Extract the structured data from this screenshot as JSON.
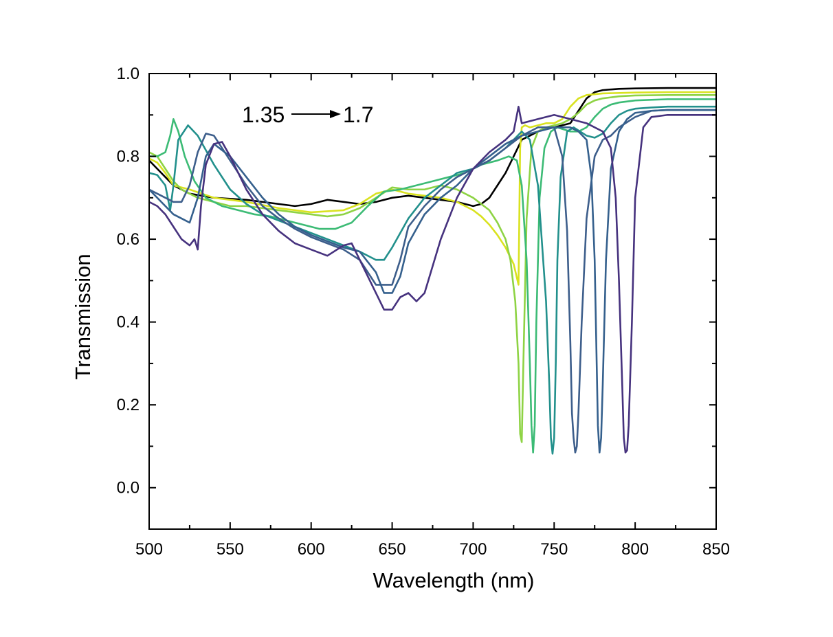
{
  "chart_data": {
    "type": "line",
    "xlabel": "Wavelength (nm)",
    "ylabel": "Transmission",
    "xlim": [
      500,
      850
    ],
    "ylim": [
      -0.1,
      1.0
    ],
    "x_ticks": [
      500,
      550,
      600,
      650,
      700,
      750,
      800,
      850
    ],
    "x_tick_labels": [
      "500",
      "550",
      "600",
      "650",
      "700",
      "750",
      "800",
      "850"
    ],
    "y_ticks": [
      0.0,
      0.2,
      0.4,
      0.6,
      0.8,
      1.0
    ],
    "y_tick_labels": [
      "0.0",
      "0.2",
      "0.4",
      "0.6",
      "0.8",
      "1.0"
    ],
    "grid": false,
    "annotation": {
      "from_label": "1.35",
      "to_label": "1.7"
    },
    "series": [
      {
        "color": "#000000",
        "x": [
          500,
          505,
          510,
          515,
          525,
          540,
          560,
          580,
          590,
          600,
          610,
          620,
          630,
          640,
          650,
          660,
          670,
          680,
          690,
          695,
          700,
          705,
          710,
          715,
          720,
          725,
          730,
          735,
          740,
          745,
          750,
          755,
          760,
          765,
          770,
          775,
          780,
          790,
          800,
          820,
          850
        ],
        "y": [
          0.79,
          0.77,
          0.75,
          0.73,
          0.71,
          0.7,
          0.695,
          0.685,
          0.68,
          0.685,
          0.695,
          0.69,
          0.685,
          0.69,
          0.7,
          0.705,
          0.7,
          0.695,
          0.69,
          0.685,
          0.68,
          0.685,
          0.7,
          0.73,
          0.76,
          0.8,
          0.84,
          0.85,
          0.86,
          0.87,
          0.87,
          0.875,
          0.88,
          0.91,
          0.94,
          0.955,
          0.96,
          0.963,
          0.964,
          0.965,
          0.965
        ]
      },
      {
        "color": "#d9e21f",
        "x": [
          500,
          505,
          510,
          515,
          525,
          540,
          560,
          580,
          600,
          620,
          630,
          640,
          650,
          660,
          670,
          680,
          690,
          700,
          705,
          710,
          715,
          720,
          725,
          728,
          729,
          730,
          732,
          735,
          740,
          745,
          750,
          755,
          760,
          765,
          770,
          780,
          800,
          820,
          850
        ],
        "y": [
          0.795,
          0.785,
          0.76,
          0.73,
          0.72,
          0.7,
          0.69,
          0.675,
          0.665,
          0.67,
          0.685,
          0.71,
          0.72,
          0.71,
          0.705,
          0.7,
          0.69,
          0.67,
          0.655,
          0.635,
          0.61,
          0.58,
          0.54,
          0.49,
          0.82,
          0.87,
          0.875,
          0.87,
          0.875,
          0.88,
          0.88,
          0.89,
          0.92,
          0.94,
          0.948,
          0.952,
          0.954,
          0.955,
          0.955
        ]
      },
      {
        "color": "#8ed344",
        "x": [
          500,
          505,
          510,
          515,
          520,
          525,
          530,
          540,
          550,
          560,
          570,
          580,
          590,
          600,
          610,
          620,
          630,
          640,
          650,
          660,
          670,
          680,
          690,
          700,
          710,
          715,
          720,
          723,
          726,
          728,
          729,
          730,
          731,
          733,
          736,
          740,
          745,
          750,
          755,
          760,
          765,
          770,
          775,
          780,
          790,
          800,
          820,
          850
        ],
        "y": [
          0.81,
          0.8,
          0.77,
          0.74,
          0.72,
          0.71,
          0.7,
          0.69,
          0.68,
          0.68,
          0.675,
          0.67,
          0.665,
          0.66,
          0.655,
          0.66,
          0.675,
          0.7,
          0.725,
          0.72,
          0.72,
          0.73,
          0.72,
          0.7,
          0.67,
          0.64,
          0.6,
          0.55,
          0.45,
          0.3,
          0.13,
          0.11,
          0.3,
          0.65,
          0.82,
          0.86,
          0.87,
          0.875,
          0.88,
          0.89,
          0.905,
          0.925,
          0.935,
          0.94,
          0.945,
          0.947,
          0.948,
          0.948
        ]
      },
      {
        "color": "#3cbb75",
        "x": [
          500,
          505,
          510,
          513,
          515,
          518,
          522,
          528,
          535,
          545,
          555,
          565,
          575,
          585,
          595,
          605,
          615,
          625,
          635,
          645,
          655,
          665,
          675,
          685,
          695,
          705,
          715,
          722,
          727,
          730,
          733,
          735,
          736,
          737,
          738,
          739,
          741,
          744,
          748,
          752,
          756,
          760,
          765,
          770,
          775,
          780,
          785,
          790,
          800,
          820,
          850
        ],
        "y": [
          0.8,
          0.8,
          0.81,
          0.85,
          0.89,
          0.86,
          0.8,
          0.74,
          0.7,
          0.68,
          0.67,
          0.66,
          0.655,
          0.645,
          0.635,
          0.625,
          0.625,
          0.64,
          0.68,
          0.715,
          0.72,
          0.73,
          0.74,
          0.75,
          0.76,
          0.78,
          0.79,
          0.8,
          0.79,
          0.73,
          0.55,
          0.3,
          0.15,
          0.085,
          0.15,
          0.4,
          0.7,
          0.82,
          0.86,
          0.87,
          0.865,
          0.86,
          0.86,
          0.87,
          0.895,
          0.915,
          0.925,
          0.93,
          0.935,
          0.938,
          0.938
        ]
      },
      {
        "color": "#22908c",
        "x": [
          500,
          505,
          510,
          513,
          515,
          518,
          524,
          530,
          540,
          550,
          560,
          570,
          580,
          590,
          600,
          610,
          620,
          630,
          640,
          645,
          650,
          660,
          670,
          680,
          690,
          700,
          710,
          720,
          725,
          730,
          735,
          740,
          745,
          747,
          748,
          749,
          750,
          751,
          752,
          754,
          758,
          762,
          766,
          770,
          775,
          780,
          785,
          790,
          795,
          800,
          810,
          820,
          850
        ],
        "y": [
          0.76,
          0.755,
          0.73,
          0.67,
          0.73,
          0.84,
          0.875,
          0.85,
          0.78,
          0.72,
          0.685,
          0.66,
          0.645,
          0.63,
          0.615,
          0.6,
          0.585,
          0.57,
          0.55,
          0.55,
          0.58,
          0.65,
          0.7,
          0.73,
          0.76,
          0.77,
          0.79,
          0.82,
          0.84,
          0.86,
          0.84,
          0.73,
          0.45,
          0.25,
          0.12,
          0.082,
          0.12,
          0.3,
          0.55,
          0.75,
          0.86,
          0.87,
          0.86,
          0.85,
          0.845,
          0.855,
          0.88,
          0.9,
          0.91,
          0.915,
          0.918,
          0.92,
          0.92
        ]
      },
      {
        "color": "#3d5e8b",
        "x": [
          500,
          505,
          510,
          515,
          520,
          525,
          530,
          535,
          540,
          550,
          560,
          570,
          580,
          590,
          600,
          610,
          620,
          630,
          640,
          650,
          655,
          660,
          670,
          680,
          690,
          700,
          710,
          720,
          730,
          740,
          750,
          755,
          758,
          760,
          761,
          762,
          763,
          764,
          765,
          767,
          770,
          775,
          780,
          785,
          790,
          800,
          810,
          820,
          850
        ],
        "y": [
          0.72,
          0.71,
          0.7,
          0.69,
          0.69,
          0.73,
          0.81,
          0.855,
          0.85,
          0.79,
          0.73,
          0.68,
          0.65,
          0.625,
          0.605,
          0.59,
          0.575,
          0.55,
          0.49,
          0.49,
          0.55,
          0.63,
          0.68,
          0.72,
          0.75,
          0.77,
          0.79,
          0.82,
          0.85,
          0.87,
          0.87,
          0.8,
          0.62,
          0.35,
          0.18,
          0.12,
          0.085,
          0.1,
          0.18,
          0.4,
          0.65,
          0.8,
          0.84,
          0.85,
          0.87,
          0.895,
          0.91,
          0.912,
          0.912
        ]
      },
      {
        "color": "#35608d",
        "x": [
          500,
          505,
          510,
          515,
          520,
          525,
          530,
          535,
          540,
          550,
          560,
          570,
          580,
          590,
          600,
          610,
          620,
          630,
          640,
          645,
          650,
          655,
          660,
          670,
          680,
          690,
          700,
          710,
          720,
          730,
          740,
          750,
          760,
          765,
          770,
          773,
          775,
          776,
          777,
          778,
          779,
          780,
          782,
          785,
          790,
          795,
          800,
          810,
          820,
          850
        ],
        "y": [
          0.72,
          0.7,
          0.68,
          0.66,
          0.65,
          0.64,
          0.7,
          0.8,
          0.83,
          0.8,
          0.75,
          0.7,
          0.66,
          0.63,
          0.61,
          0.595,
          0.58,
          0.57,
          0.52,
          0.47,
          0.47,
          0.51,
          0.59,
          0.66,
          0.7,
          0.73,
          0.77,
          0.8,
          0.83,
          0.85,
          0.86,
          0.87,
          0.87,
          0.86,
          0.84,
          0.75,
          0.55,
          0.35,
          0.15,
          0.085,
          0.12,
          0.25,
          0.55,
          0.77,
          0.86,
          0.89,
          0.905,
          0.91,
          0.912,
          0.912
        ]
      },
      {
        "color": "#46327e",
        "x": [
          500,
          505,
          510,
          515,
          520,
          525,
          528,
          530,
          532,
          535,
          540,
          545,
          550,
          560,
          570,
          580,
          590,
          600,
          610,
          620,
          625,
          630,
          640,
          645,
          650,
          655,
          660,
          665,
          670,
          680,
          690,
          700,
          710,
          720,
          725,
          728,
          730,
          740,
          750,
          760,
          770,
          780,
          785,
          788,
          790,
          792,
          793,
          794,
          795,
          796,
          798,
          800,
          805,
          810,
          820,
          830,
          850
        ],
        "y": [
          0.69,
          0.68,
          0.66,
          0.63,
          0.6,
          0.585,
          0.6,
          0.575,
          0.68,
          0.78,
          0.83,
          0.835,
          0.8,
          0.72,
          0.66,
          0.62,
          0.59,
          0.575,
          0.56,
          0.585,
          0.59,
          0.55,
          0.47,
          0.43,
          0.43,
          0.46,
          0.47,
          0.45,
          0.47,
          0.6,
          0.7,
          0.77,
          0.81,
          0.84,
          0.86,
          0.92,
          0.88,
          0.89,
          0.9,
          0.89,
          0.88,
          0.86,
          0.82,
          0.7,
          0.5,
          0.25,
          0.12,
          0.085,
          0.09,
          0.15,
          0.4,
          0.7,
          0.87,
          0.895,
          0.9,
          0.9,
          0.9
        ]
      }
    ]
  }
}
